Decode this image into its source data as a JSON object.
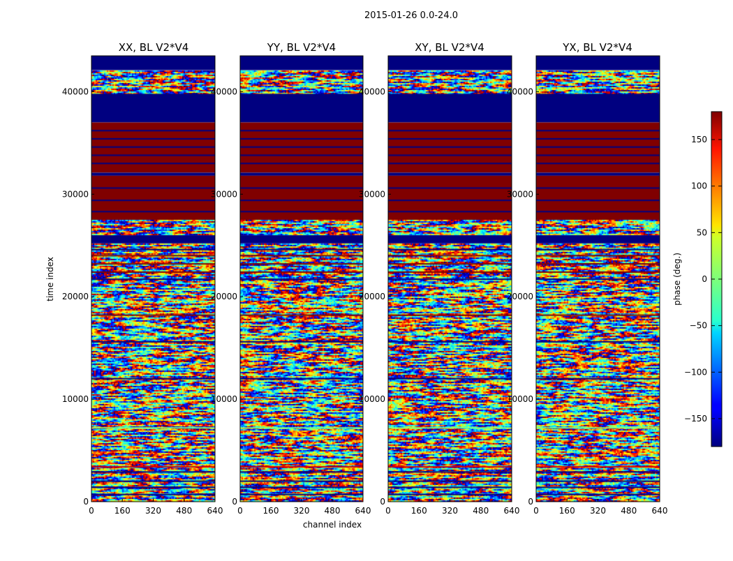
{
  "figure": {
    "suptitle": "2015-01-26 0.0-24.0"
  },
  "chart_data": {
    "type": "heatmap",
    "suptitle": "2015-01-26 0.0-24.0",
    "xlabel": "channel index",
    "ylabel": "time index",
    "xlim": [
      0,
      640
    ],
    "ylim": [
      0,
      43500
    ],
    "x_ticks": [
      0,
      160,
      320,
      480,
      640
    ],
    "y_ticks": [
      0,
      10000,
      20000,
      30000,
      40000
    ],
    "colormap": "jet",
    "colorbar": {
      "label": "phase (deg.)",
      "vmin": -180,
      "vmax": 180,
      "ticks": [
        150,
        100,
        50,
        0,
        -50,
        -100,
        -150
      ],
      "tick_labels": [
        "150",
        "100",
        "50",
        "0",
        "−50",
        "−100",
        "−150"
      ]
    },
    "panels": [
      {
        "title": "XX, BL V2*V4",
        "polarization": "XX"
      },
      {
        "title": "YY, BL V2*V4",
        "polarization": "YY"
      },
      {
        "title": "XY, BL V2*V4",
        "polarization": "XY"
      },
      {
        "title": "YX, BL V2*V4",
        "polarization": "YX"
      }
    ],
    "bands": [
      {
        "t0": 42100,
        "t1": 43500,
        "phase": -180
      },
      {
        "t0": 37000,
        "t1": 39800,
        "phase": -180
      },
      {
        "t0": 32100,
        "t1": 37000,
        "phase": 180
      },
      {
        "t0": 31800,
        "t1": 32100,
        "phase": -180
      },
      {
        "t0": 27500,
        "t1": 31800,
        "phase": 180
      },
      {
        "t0": 25200,
        "t1": 26000,
        "phase": -180
      }
    ],
    "noise_bands": [
      {
        "t0": 39800,
        "t1": 42100
      },
      {
        "t0": 26000,
        "t1": 27500
      },
      {
        "t0": 0,
        "t1": 25200
      }
    ],
    "flat_rows": [
      {
        "t": 36200,
        "phase": -180
      },
      {
        "t": 35400,
        "phase": -180
      },
      {
        "t": 34600,
        "phase": -180
      },
      {
        "t": 33800,
        "phase": -180
      },
      {
        "t": 33000,
        "phase": -180
      },
      {
        "t": 30600,
        "phase": -180
      },
      {
        "t": 29400,
        "phase": -180
      },
      {
        "t": 28300,
        "phase": -180
      },
      {
        "t": 22400,
        "phase": 180
      },
      {
        "t": 23200,
        "phase": 180
      },
      {
        "t": 24000,
        "phase": 180
      },
      {
        "t": 24600,
        "phase": -180
      },
      {
        "t": 21700,
        "phase": -180
      },
      {
        "t": 18200,
        "phase": 180
      },
      {
        "t": 15600,
        "phase": -180
      },
      {
        "t": 12000,
        "phase": -180
      },
      {
        "t": 7200,
        "phase": 0
      },
      {
        "t": 3400,
        "phase": 150
      },
      {
        "t": 2900,
        "phase": -180
      },
      {
        "t": 2000,
        "phase": -180
      },
      {
        "t": 1400,
        "phase": -180
      },
      {
        "t": 700,
        "phase": -180
      }
    ]
  }
}
